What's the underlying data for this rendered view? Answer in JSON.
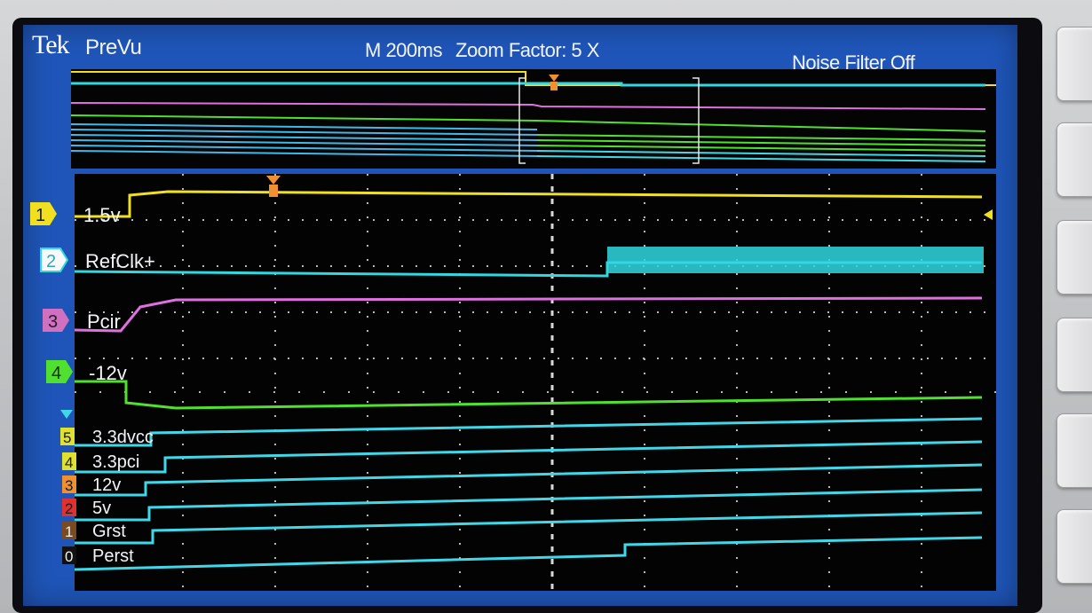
{
  "header": {
    "brand": "Tek",
    "mode": "PreVu",
    "timebase": "M 200ms",
    "zoom_factor": "Zoom Factor: 5 X",
    "noise_filter": "Noise Filter Off"
  },
  "analog_channels": [
    {
      "number": "1",
      "label": "1.5v",
      "color": "#f0e020"
    },
    {
      "number": "2",
      "label": "RefClk+",
      "color": "#30d8e0"
    },
    {
      "number": "3",
      "label": "Pcir",
      "color": "#e070e0"
    },
    {
      "number": "4",
      "label": "-12v",
      "color": "#50e030"
    }
  ],
  "digital_channels": [
    {
      "number": "5",
      "label": "3.3dvcc"
    },
    {
      "number": "4",
      "label": "3.3pci"
    },
    {
      "number": "3",
      "label": "12v"
    },
    {
      "number": "2",
      "label": "5v"
    },
    {
      "number": "1",
      "label": "Grst"
    },
    {
      "number": "0",
      "label": "Perst"
    }
  ],
  "colors": {
    "screen_bg": "#1f55b8",
    "digital_trace": "#40d8e8",
    "trigger_marker": "#f09030",
    "grid": "#b8b8b8"
  },
  "icons": [
    "channel-marker-icon",
    "trigger-position-icon",
    "trigger-level-icon",
    "digital-group-icon"
  ]
}
